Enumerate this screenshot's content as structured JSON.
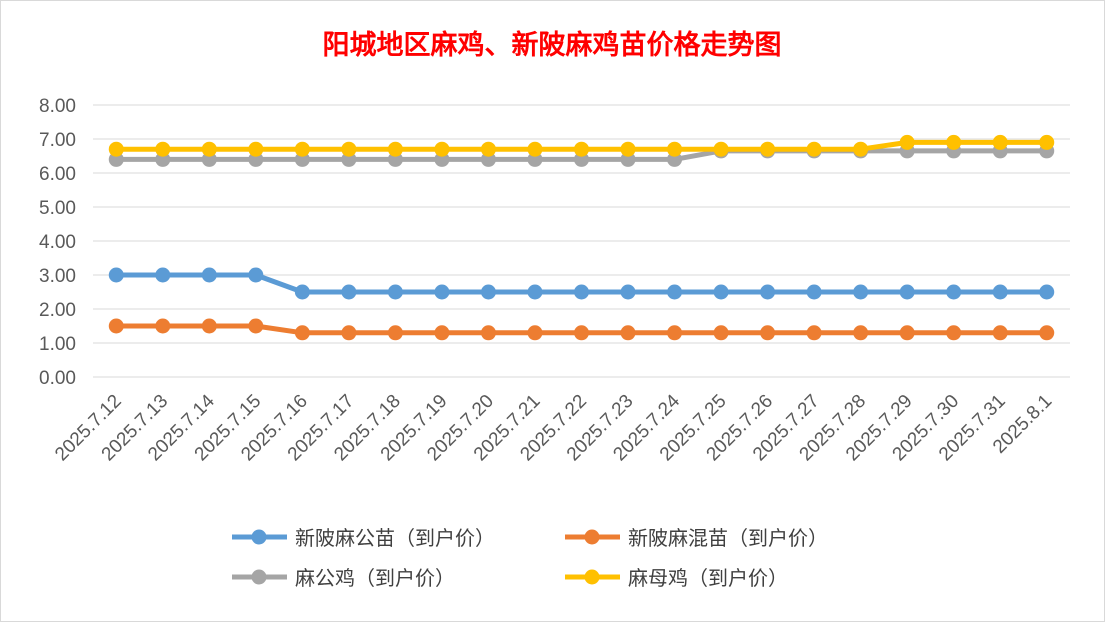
{
  "chart_data": {
    "type": "line",
    "title": "阳城地区麻鸡、新陂麻鸡苗价格走势图",
    "xlabel": "",
    "ylabel": "",
    "ylim": [
      0,
      8
    ],
    "y_ticks": [
      "0.00",
      "1.00",
      "2.00",
      "3.00",
      "4.00",
      "5.00",
      "6.00",
      "7.00",
      "8.00"
    ],
    "grid": true,
    "legend_position": "bottom",
    "categories": [
      "2025.7.12",
      "2025.7.13",
      "2025.7.14",
      "2025.7.15",
      "2025.7.16",
      "2025.7.17",
      "2025.7.18",
      "2025.7.19",
      "2025.7.20",
      "2025.7.21",
      "2025.7.22",
      "2025.7.23",
      "2025.7.24",
      "2025.7.25",
      "2025.7.26",
      "2025.7.27",
      "2025.7.28",
      "2025.7.29",
      "2025.7.30",
      "2025.7.31",
      "2025.8.1"
    ],
    "series": [
      {
        "name": "新陂麻公苗（到户价）",
        "color": "#5b9bd5",
        "values": [
          3.0,
          3.0,
          3.0,
          3.0,
          2.5,
          2.5,
          2.5,
          2.5,
          2.5,
          2.5,
          2.5,
          2.5,
          2.5,
          2.5,
          2.5,
          2.5,
          2.5,
          2.5,
          2.5,
          2.5,
          2.5
        ]
      },
      {
        "name": "新陂麻混苗（到户价）",
        "color": "#ed7d31",
        "values": [
          1.5,
          1.5,
          1.5,
          1.5,
          1.3,
          1.3,
          1.3,
          1.3,
          1.3,
          1.3,
          1.3,
          1.3,
          1.3,
          1.3,
          1.3,
          1.3,
          1.3,
          1.3,
          1.3,
          1.3,
          1.3
        ]
      },
      {
        "name": "麻公鸡（到户价）",
        "color": "#a5a5a5",
        "values": [
          6.4,
          6.4,
          6.4,
          6.4,
          6.4,
          6.4,
          6.4,
          6.4,
          6.4,
          6.4,
          6.4,
          6.4,
          6.4,
          6.65,
          6.65,
          6.65,
          6.65,
          6.65,
          6.65,
          6.65,
          6.65
        ]
      },
      {
        "name": "麻母鸡（到户价）",
        "color": "#ffc000",
        "values": [
          6.7,
          6.7,
          6.7,
          6.7,
          6.7,
          6.7,
          6.7,
          6.7,
          6.7,
          6.7,
          6.7,
          6.7,
          6.7,
          6.7,
          6.7,
          6.7,
          6.7,
          6.9,
          6.9,
          6.9,
          6.9
        ]
      }
    ]
  }
}
